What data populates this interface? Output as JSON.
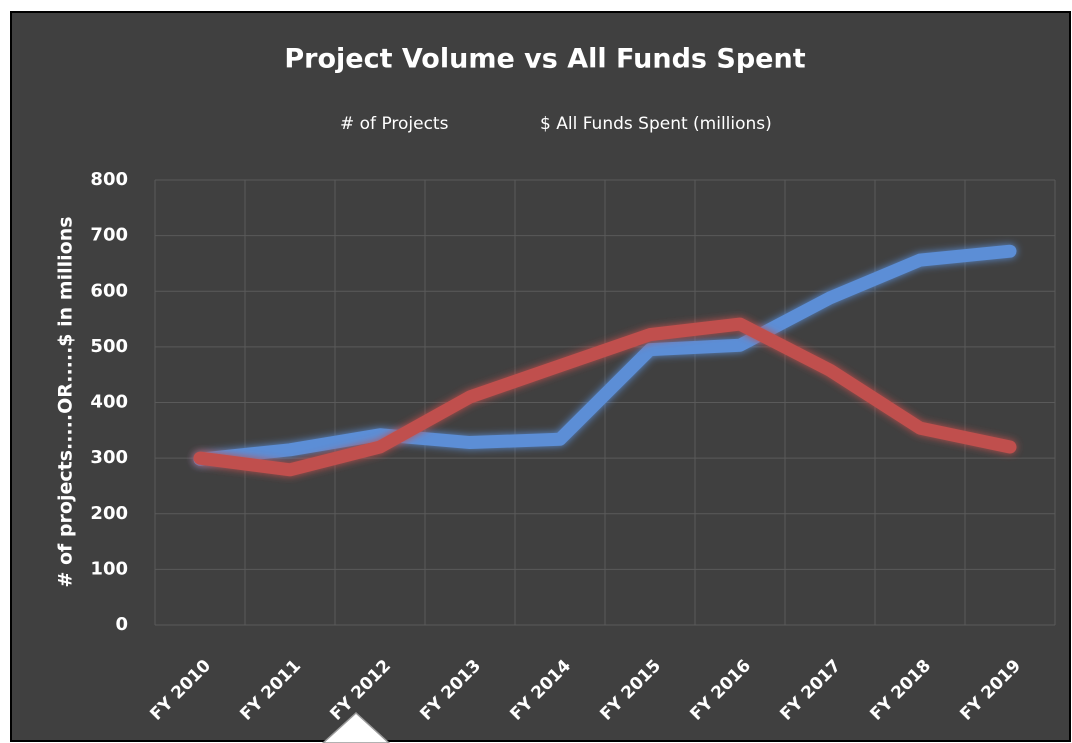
{
  "chart_data": {
    "type": "line",
    "title": "Project Volume vs All Funds Spent",
    "y_label": "# of projects.....OR.....$ in millions",
    "categories": [
      "FY 2010",
      "FY 2011",
      "FY 2012",
      "FY 2013",
      "FY 2014",
      "FY 2015",
      "FY 2016",
      "FY 2017",
      "FY 2018",
      "FY 2019"
    ],
    "series": [
      {
        "name": "# of Projects",
        "color": "#5b8ed6",
        "values": [
          298,
          315,
          342,
          328,
          334,
          495,
          503,
          588,
          656,
          672
        ]
      },
      {
        "name": "$ All Funds Spent (millions)",
        "color": "#c0504d",
        "values": [
          300,
          279,
          320,
          410,
          466,
          522,
          541,
          458,
          354,
          320
        ]
      }
    ],
    "ylim": [
      0,
      800
    ],
    "yticks": [
      0,
      100,
      200,
      300,
      400,
      500,
      600,
      700,
      800
    ],
    "grid": true,
    "legend": "top"
  }
}
